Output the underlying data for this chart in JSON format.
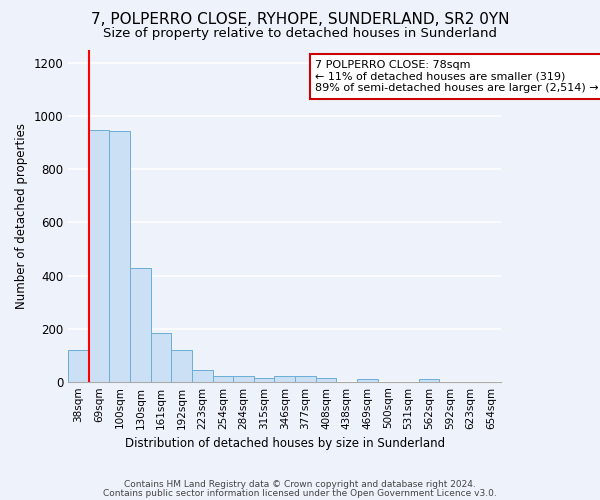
{
  "title": "7, POLPERRO CLOSE, RYHOPE, SUNDERLAND, SR2 0YN",
  "subtitle": "Size of property relative to detached houses in Sunderland",
  "xlabel": "Distribution of detached houses by size in Sunderland",
  "ylabel": "Number of detached properties",
  "categories": [
    "38sqm",
    "69sqm",
    "100sqm",
    "130sqm",
    "161sqm",
    "192sqm",
    "223sqm",
    "254sqm",
    "284sqm",
    "315sqm",
    "346sqm",
    "377sqm",
    "408sqm",
    "438sqm",
    "469sqm",
    "500sqm",
    "531sqm",
    "562sqm",
    "592sqm",
    "623sqm",
    "654sqm"
  ],
  "values": [
    120,
    950,
    945,
    430,
    185,
    120,
    45,
    20,
    20,
    15,
    20,
    20,
    12,
    0,
    10,
    0,
    0,
    10,
    0,
    0,
    0
  ],
  "bar_color": "#cce0f5",
  "bar_edge_color": "#6aaed6",
  "red_line_x": 0.5,
  "annotation_text": "7 POLPERRO CLOSE: 78sqm\n← 11% of detached houses are smaller (319)\n89% of semi-detached houses are larger (2,514) →",
  "annotation_box_color": "#ffffff",
  "annotation_box_edge_color": "#cc0000",
  "ylim": [
    0,
    1250
  ],
  "yticks": [
    0,
    200,
    400,
    600,
    800,
    1000,
    1200
  ],
  "footer1": "Contains HM Land Registry data © Crown copyright and database right 2024.",
  "footer2": "Contains public sector information licensed under the Open Government Licence v3.0.",
  "bg_color": "#eef2fa",
  "grid_color": "#ffffff",
  "title_fontsize": 11,
  "subtitle_fontsize": 9.5
}
